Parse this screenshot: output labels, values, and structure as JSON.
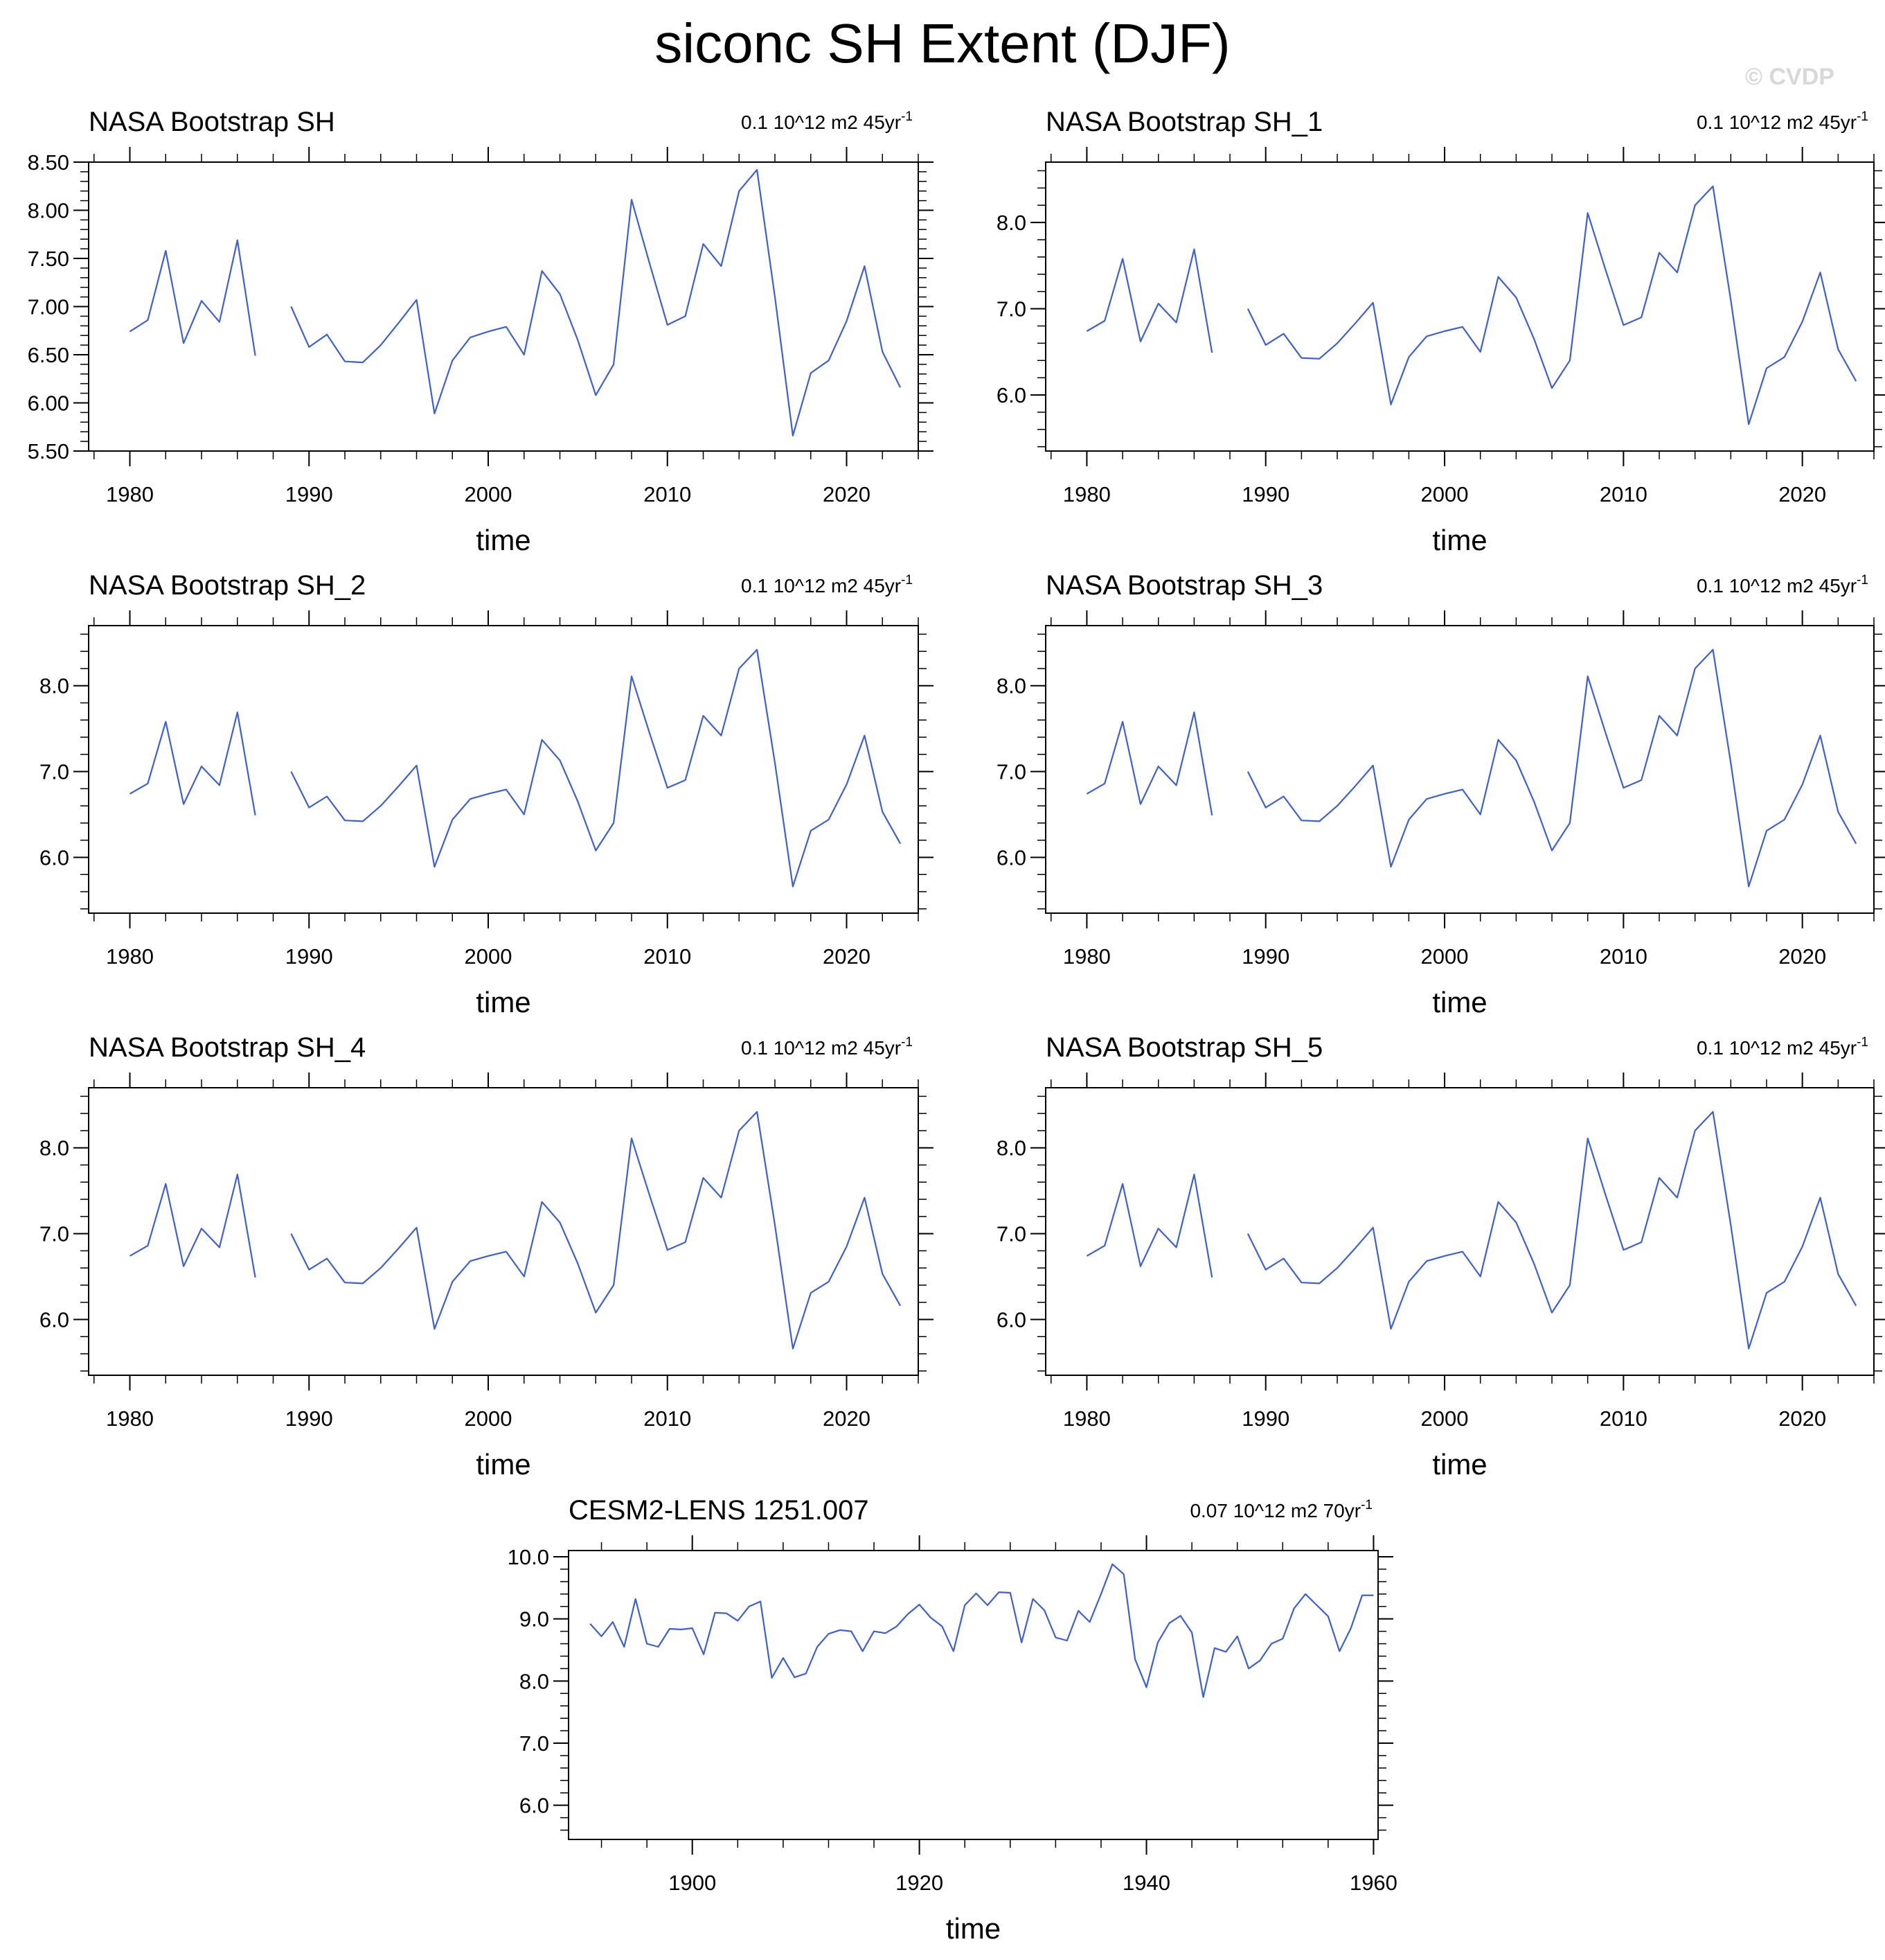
{
  "figure": {
    "title": "siconc SH Extent (DJF)",
    "watermark": "© CVDP",
    "series_color": "#3c5fd6"
  },
  "chart_data": [
    {
      "type": "line",
      "title": "NASA Bootstrap SH",
      "trend_label": "0.1 10^12 m2 45yr",
      "trend_exponent": "-1",
      "xlabel": "time",
      "ylabel": "",
      "xlim": [
        1977.7,
        2024
      ],
      "ylim": [
        5.5,
        8.5
      ],
      "yticks": [
        5.5,
        6.0,
        6.5,
        7.0,
        7.5,
        8.0,
        8.5
      ],
      "ytick_labels": [
        "5.50",
        "6.00",
        "6.50",
        "7.00",
        "7.50",
        "8.00",
        "8.50"
      ],
      "xticks": [
        1980,
        1990,
        2000,
        2010,
        2020
      ],
      "xtick_labels": [
        "1980",
        "1990",
        "2000",
        "2010",
        "2020"
      ],
      "x": [
        1980,
        1981,
        1982,
        1983,
        1984,
        1985,
        1986,
        1987,
        1988,
        1989,
        1990,
        1991,
        1992,
        1993,
        1994,
        1995,
        1996,
        1997,
        1998,
        1999,
        2000,
        2001,
        2002,
        2003,
        2004,
        2005,
        2006,
        2007,
        2008,
        2009,
        2010,
        2011,
        2012,
        2013,
        2014,
        2015,
        2016,
        2017,
        2018,
        2019,
        2020,
        2021,
        2022,
        2023
      ],
      "values": [
        6.74,
        6.86,
        7.58,
        6.62,
        7.06,
        6.84,
        7.69,
        6.49,
        null,
        7.0,
        6.58,
        6.71,
        6.43,
        6.42,
        6.6,
        6.83,
        7.07,
        5.89,
        6.44,
        6.68,
        6.74,
        6.79,
        6.5,
        7.37,
        7.13,
        6.65,
        6.08,
        6.4,
        8.11,
        7.45,
        6.81,
        6.9,
        7.65,
        7.42,
        8.2,
        8.42,
        7.1,
        5.66,
        6.31,
        6.44,
        6.85,
        7.42,
        6.53,
        6.16
      ]
    },
    {
      "type": "line",
      "title": "NASA Bootstrap SH_1",
      "trend_label": "0.1 10^12 m2 45yr",
      "trend_exponent": "-1",
      "xlabel": "time",
      "ylabel": "",
      "xlim": [
        1977.7,
        2024
      ],
      "ylim": [
        5.35,
        8.7
      ],
      "yticks": [
        6.0,
        7.0,
        8.0
      ],
      "ytick_labels": [
        "6.0",
        "7.0",
        "8.0"
      ],
      "xticks": [
        1980,
        1990,
        2000,
        2010,
        2020
      ],
      "xtick_labels": [
        "1980",
        "1990",
        "2000",
        "2010",
        "2020"
      ],
      "x": [
        1980,
        1981,
        1982,
        1983,
        1984,
        1985,
        1986,
        1987,
        1988,
        1989,
        1990,
        1991,
        1992,
        1993,
        1994,
        1995,
        1996,
        1997,
        1998,
        1999,
        2000,
        2001,
        2002,
        2003,
        2004,
        2005,
        2006,
        2007,
        2008,
        2009,
        2010,
        2011,
        2012,
        2013,
        2014,
        2015,
        2016,
        2017,
        2018,
        2019,
        2020,
        2021,
        2022,
        2023
      ],
      "values": [
        6.74,
        6.86,
        7.58,
        6.62,
        7.06,
        6.84,
        7.69,
        6.49,
        null,
        7.0,
        6.58,
        6.71,
        6.43,
        6.42,
        6.6,
        6.83,
        7.07,
        5.89,
        6.44,
        6.68,
        6.74,
        6.79,
        6.5,
        7.37,
        7.13,
        6.65,
        6.08,
        6.4,
        8.11,
        7.45,
        6.81,
        6.9,
        7.65,
        7.42,
        8.2,
        8.42,
        7.1,
        5.66,
        6.31,
        6.44,
        6.85,
        7.42,
        6.53,
        6.16
      ]
    },
    {
      "type": "line",
      "title": "NASA Bootstrap SH_2",
      "trend_label": "0.1 10^12 m2 45yr",
      "trend_exponent": "-1",
      "xlabel": "time",
      "ylabel": "",
      "xlim": [
        1977.7,
        2024
      ],
      "ylim": [
        5.35,
        8.7
      ],
      "yticks": [
        6.0,
        7.0,
        8.0
      ],
      "ytick_labels": [
        "6.0",
        "7.0",
        "8.0"
      ],
      "xticks": [
        1980,
        1990,
        2000,
        2010,
        2020
      ],
      "xtick_labels": [
        "1980",
        "1990",
        "2000",
        "2010",
        "2020"
      ],
      "x": [
        1980,
        1981,
        1982,
        1983,
        1984,
        1985,
        1986,
        1987,
        1988,
        1989,
        1990,
        1991,
        1992,
        1993,
        1994,
        1995,
        1996,
        1997,
        1998,
        1999,
        2000,
        2001,
        2002,
        2003,
        2004,
        2005,
        2006,
        2007,
        2008,
        2009,
        2010,
        2011,
        2012,
        2013,
        2014,
        2015,
        2016,
        2017,
        2018,
        2019,
        2020,
        2021,
        2022,
        2023
      ],
      "values": [
        6.74,
        6.86,
        7.58,
        6.62,
        7.06,
        6.84,
        7.69,
        6.49,
        null,
        7.0,
        6.58,
        6.71,
        6.43,
        6.42,
        6.6,
        6.83,
        7.07,
        5.89,
        6.44,
        6.68,
        6.74,
        6.79,
        6.5,
        7.37,
        7.13,
        6.65,
        6.08,
        6.4,
        8.11,
        7.45,
        6.81,
        6.9,
        7.65,
        7.42,
        8.2,
        8.42,
        7.1,
        5.66,
        6.31,
        6.44,
        6.85,
        7.42,
        6.53,
        6.16
      ]
    },
    {
      "type": "line",
      "title": "NASA Bootstrap SH_3",
      "trend_label": "0.1 10^12 m2 45yr",
      "trend_exponent": "-1",
      "xlabel": "time",
      "ylabel": "",
      "xlim": [
        1977.7,
        2024
      ],
      "ylim": [
        5.35,
        8.7
      ],
      "yticks": [
        6.0,
        7.0,
        8.0
      ],
      "ytick_labels": [
        "6.0",
        "7.0",
        "8.0"
      ],
      "xticks": [
        1980,
        1990,
        2000,
        2010,
        2020
      ],
      "xtick_labels": [
        "1980",
        "1990",
        "2000",
        "2010",
        "2020"
      ],
      "x": [
        1980,
        1981,
        1982,
        1983,
        1984,
        1985,
        1986,
        1987,
        1988,
        1989,
        1990,
        1991,
        1992,
        1993,
        1994,
        1995,
        1996,
        1997,
        1998,
        1999,
        2000,
        2001,
        2002,
        2003,
        2004,
        2005,
        2006,
        2007,
        2008,
        2009,
        2010,
        2011,
        2012,
        2013,
        2014,
        2015,
        2016,
        2017,
        2018,
        2019,
        2020,
        2021,
        2022,
        2023
      ],
      "values": [
        6.74,
        6.86,
        7.58,
        6.62,
        7.06,
        6.84,
        7.69,
        6.49,
        null,
        7.0,
        6.58,
        6.71,
        6.43,
        6.42,
        6.6,
        6.83,
        7.07,
        5.89,
        6.44,
        6.68,
        6.74,
        6.79,
        6.5,
        7.37,
        7.13,
        6.65,
        6.08,
        6.4,
        8.11,
        7.45,
        6.81,
        6.9,
        7.65,
        7.42,
        8.2,
        8.42,
        7.1,
        5.66,
        6.31,
        6.44,
        6.85,
        7.42,
        6.53,
        6.16
      ]
    },
    {
      "type": "line",
      "title": "NASA Bootstrap SH_4",
      "trend_label": "0.1 10^12 m2 45yr",
      "trend_exponent": "-1",
      "xlabel": "time",
      "ylabel": "",
      "xlim": [
        1977.7,
        2024
      ],
      "ylim": [
        5.35,
        8.7
      ],
      "yticks": [
        6.0,
        7.0,
        8.0
      ],
      "ytick_labels": [
        "6.0",
        "7.0",
        "8.0"
      ],
      "xticks": [
        1980,
        1990,
        2000,
        2010,
        2020
      ],
      "xtick_labels": [
        "1980",
        "1990",
        "2000",
        "2010",
        "2020"
      ],
      "x": [
        1980,
        1981,
        1982,
        1983,
        1984,
        1985,
        1986,
        1987,
        1988,
        1989,
        1990,
        1991,
        1992,
        1993,
        1994,
        1995,
        1996,
        1997,
        1998,
        1999,
        2000,
        2001,
        2002,
        2003,
        2004,
        2005,
        2006,
        2007,
        2008,
        2009,
        2010,
        2011,
        2012,
        2013,
        2014,
        2015,
        2016,
        2017,
        2018,
        2019,
        2020,
        2021,
        2022,
        2023
      ],
      "values": [
        6.74,
        6.86,
        7.58,
        6.62,
        7.06,
        6.84,
        7.69,
        6.49,
        null,
        7.0,
        6.58,
        6.71,
        6.43,
        6.42,
        6.6,
        6.83,
        7.07,
        5.89,
        6.44,
        6.68,
        6.74,
        6.79,
        6.5,
        7.37,
        7.13,
        6.65,
        6.08,
        6.4,
        8.11,
        7.45,
        6.81,
        6.9,
        7.65,
        7.42,
        8.2,
        8.42,
        7.1,
        5.66,
        6.31,
        6.44,
        6.85,
        7.42,
        6.53,
        6.16
      ]
    },
    {
      "type": "line",
      "title": "NASA Bootstrap SH_5",
      "trend_label": "0.1 10^12 m2 45yr",
      "trend_exponent": "-1",
      "xlabel": "time",
      "ylabel": "",
      "xlim": [
        1977.7,
        2024
      ],
      "ylim": [
        5.35,
        8.7
      ],
      "yticks": [
        6.0,
        7.0,
        8.0
      ],
      "ytick_labels": [
        "6.0",
        "7.0",
        "8.0"
      ],
      "xticks": [
        1980,
        1990,
        2000,
        2010,
        2020
      ],
      "xtick_labels": [
        "1980",
        "1990",
        "2000",
        "2010",
        "2020"
      ],
      "x": [
        1980,
        1981,
        1982,
        1983,
        1984,
        1985,
        1986,
        1987,
        1988,
        1989,
        1990,
        1991,
        1992,
        1993,
        1994,
        1995,
        1996,
        1997,
        1998,
        1999,
        2000,
        2001,
        2002,
        2003,
        2004,
        2005,
        2006,
        2007,
        2008,
        2009,
        2010,
        2011,
        2012,
        2013,
        2014,
        2015,
        2016,
        2017,
        2018,
        2019,
        2020,
        2021,
        2022,
        2023
      ],
      "values": [
        6.74,
        6.86,
        7.58,
        6.62,
        7.06,
        6.84,
        7.69,
        6.49,
        null,
        7.0,
        6.58,
        6.71,
        6.43,
        6.42,
        6.6,
        6.83,
        7.07,
        5.89,
        6.44,
        6.68,
        6.74,
        6.79,
        6.5,
        7.37,
        7.13,
        6.65,
        6.08,
        6.4,
        8.11,
        7.45,
        6.81,
        6.9,
        7.65,
        7.42,
        8.2,
        8.42,
        7.1,
        5.66,
        6.31,
        6.44,
        6.85,
        7.42,
        6.53,
        6.16
      ]
    },
    {
      "type": "line",
      "title": "CESM2-LENS 1251.007",
      "trend_label": "0.07 10^12 m2 70yr",
      "trend_exponent": "-1",
      "xlabel": "time",
      "ylabel": "",
      "xlim": [
        1889.1,
        1960.4
      ],
      "ylim": [
        5.45,
        10.1
      ],
      "yticks": [
        6.0,
        7.0,
        8.0,
        9.0,
        10.0
      ],
      "ytick_labels": [
        "6.0",
        "7.0",
        "8.0",
        "9.0",
        "10.0"
      ],
      "xticks": [
        1900,
        1920,
        1940,
        1960
      ],
      "xtick_labels": [
        "1900",
        "1920",
        "1940",
        "1960"
      ],
      "x": [
        1891,
        1892,
        1893,
        1894,
        1895,
        1896,
        1897,
        1898,
        1899,
        1900,
        1901,
        1902,
        1903,
        1904,
        1905,
        1906,
        1907,
        1908,
        1909,
        1910,
        1911,
        1912,
        1913,
        1914,
        1915,
        1916,
        1917,
        1918,
        1919,
        1920,
        1921,
        1922,
        1923,
        1924,
        1925,
        1926,
        1927,
        1928,
        1929,
        1930,
        1931,
        1932,
        1933,
        1934,
        1935,
        1936,
        1937,
        1938,
        1939,
        1940,
        1941,
        1942,
        1943,
        1944,
        1945,
        1946,
        1947,
        1948,
        1949,
        1950,
        1951,
        1952,
        1953,
        1954,
        1955,
        1956,
        1957,
        1958,
        1959,
        1960
      ],
      "values": [
        8.92,
        8.72,
        8.95,
        8.55,
        9.32,
        8.6,
        8.55,
        8.84,
        8.83,
        8.85,
        8.43,
        9.1,
        9.09,
        8.97,
        9.2,
        9.28,
        8.05,
        8.37,
        8.06,
        8.12,
        8.55,
        8.76,
        8.82,
        8.8,
        8.48,
        8.8,
        8.77,
        8.88,
        9.08,
        9.23,
        9.02,
        8.88,
        8.48,
        9.22,
        9.41,
        9.22,
        9.43,
        9.42,
        8.62,
        9.32,
        9.14,
        8.7,
        8.65,
        9.13,
        8.95,
        9.4,
        9.88,
        9.72,
        8.35,
        7.9,
        8.62,
        8.93,
        9.05,
        8.78,
        7.74,
        8.53,
        8.47,
        8.72,
        8.2,
        8.33,
        8.6,
        8.68,
        9.17,
        9.4,
        9.22,
        9.04,
        8.48,
        8.85,
        9.38,
        9.38
      ]
    }
  ]
}
